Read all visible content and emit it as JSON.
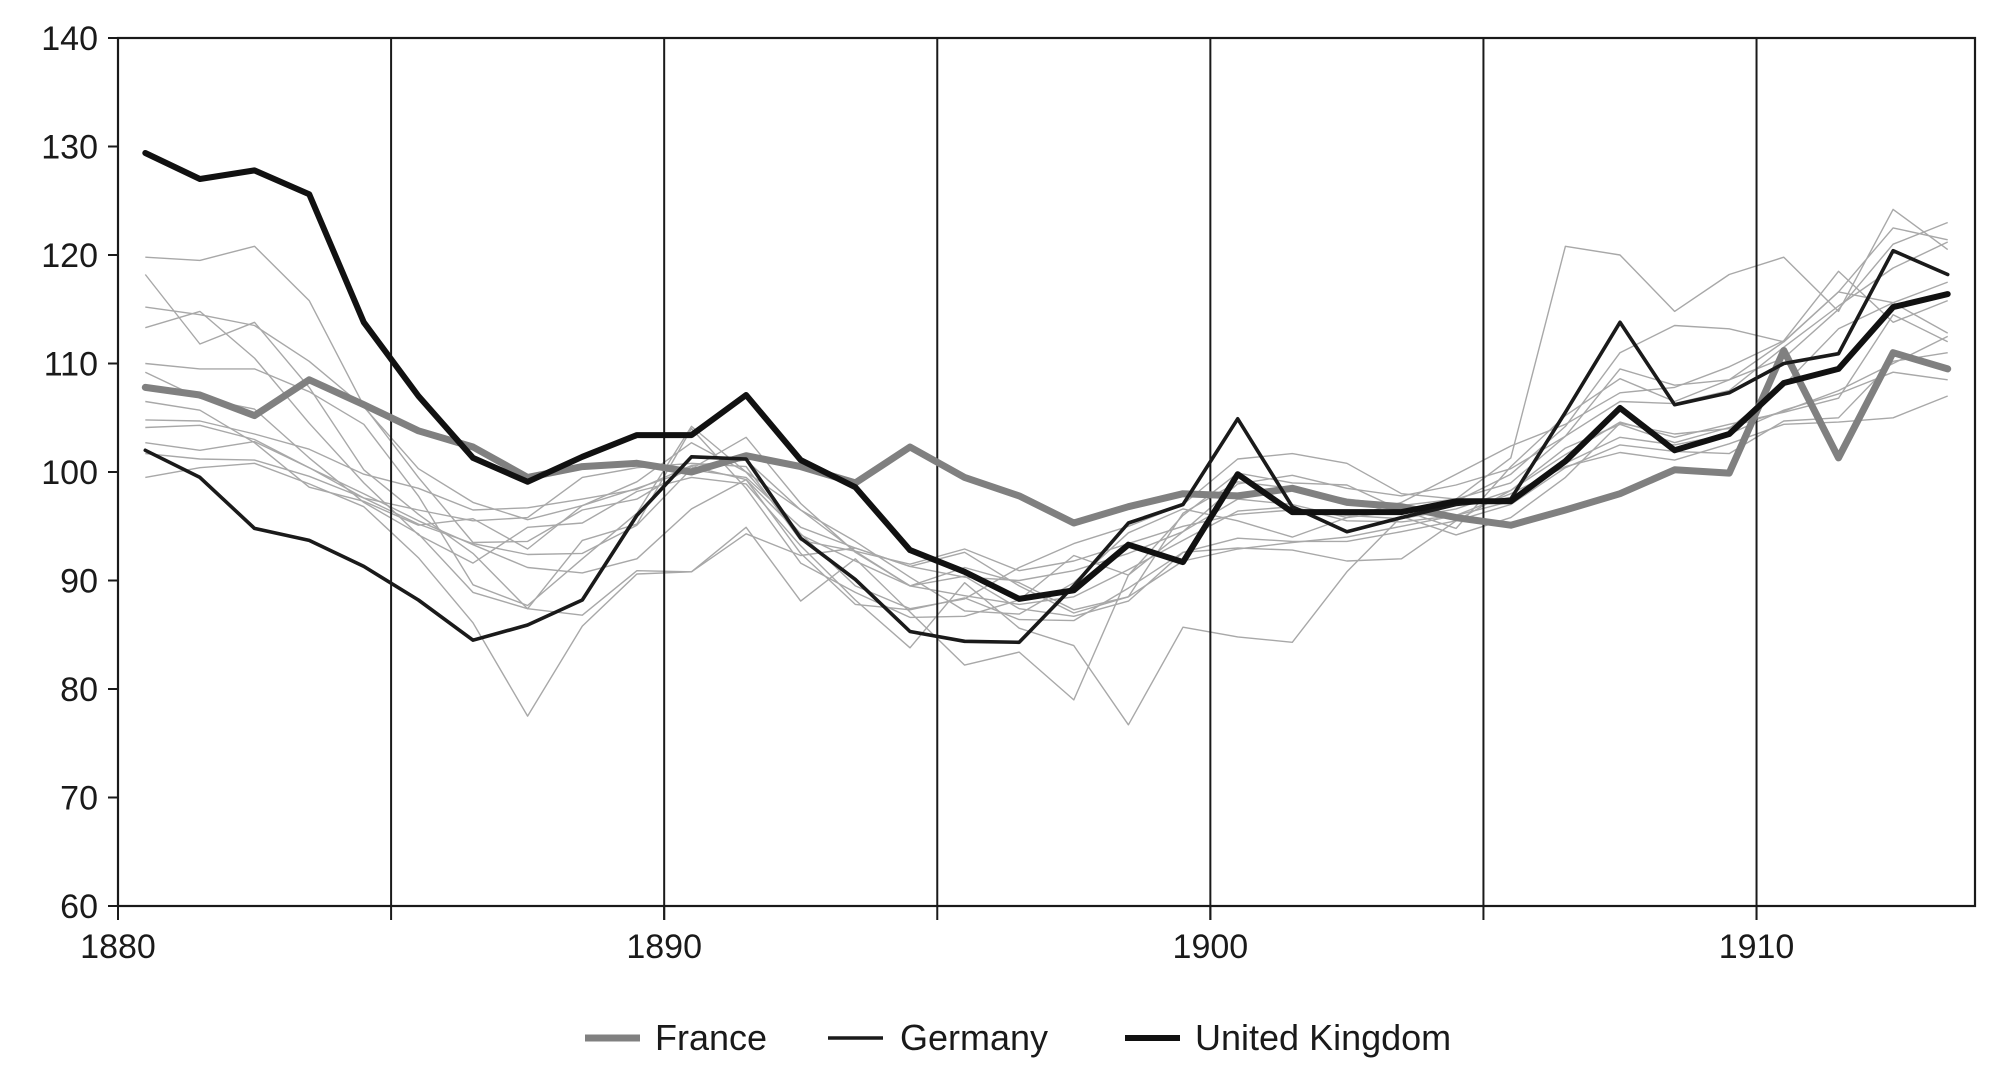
{
  "chart_data": {
    "type": "line",
    "title": "",
    "xlabel": "",
    "ylabel": "",
    "xlim": [
      1880,
      1914
    ],
    "ylim": [
      60,
      140
    ],
    "yticks": [
      60,
      70,
      80,
      90,
      100,
      110,
      120,
      130,
      140
    ],
    "xticks": [
      1880,
      1890,
      1900,
      1910
    ],
    "x_tick_labels": [
      "1880",
      "1890",
      "1900",
      "1910"
    ],
    "vertical_lines": [
      1885,
      1890,
      1895,
      1900,
      1905,
      1910
    ],
    "grid": "vertical lines at 1885, 1890, 1895, 1900, 1905, 1910",
    "legend_position": "bottom",
    "x": [
      1880.5,
      1881.5,
      1882.5,
      1883.5,
      1884.5,
      1885.5,
      1886.5,
      1887.5,
      1888.5,
      1889.5,
      1890.5,
      1891.5,
      1892.5,
      1893.5,
      1894.5,
      1895.5,
      1896.5,
      1897.5,
      1898.5,
      1899.5,
      1900.5,
      1901.5,
      1902.5,
      1903.5,
      1904.5,
      1905.5,
      1906.5,
      1907.5,
      1908.5,
      1909.5,
      1910.5,
      1911.5,
      1912.5,
      1913.5
    ],
    "series": [
      {
        "name": "France",
        "color": "#808080",
        "style": "thick-gray",
        "values": [
          107.8,
          107.1,
          105.2,
          108.5,
          106.2,
          103.8,
          102.3,
          99.5,
          100.5,
          100.8,
          100.0,
          101.5,
          100.5,
          99.0,
          102.3,
          99.5,
          97.8,
          95.3,
          96.8,
          98.0,
          97.8,
          98.5,
          97.2,
          96.8,
          95.8,
          95.1,
          96.5,
          98.0,
          100.2,
          99.9,
          111.2,
          101.3,
          111.0,
          109.5
        ]
      },
      {
        "name": "Germany",
        "color": "#1a1a1a",
        "style": "thin-black",
        "values": [
          102.0,
          99.5,
          94.8,
          93.7,
          91.3,
          88.2,
          84.5,
          85.9,
          88.2,
          96.0,
          101.4,
          101.2,
          93.9,
          90.1,
          85.3,
          84.4,
          84.3,
          89.5,
          95.3,
          97.0,
          104.9,
          96.8,
          94.5,
          95.8,
          97.0,
          97.5,
          105.5,
          113.8,
          106.2,
          107.3,
          110.0,
          110.9,
          120.4,
          118.2
        ]
      },
      {
        "name": "United Kingdom",
        "color": "#111111",
        "style": "thick-black",
        "values": [
          129.4,
          127.0,
          127.8,
          125.6,
          113.8,
          107.0,
          101.3,
          99.1,
          101.4,
          103.4,
          103.4,
          107.1,
          101.1,
          98.6,
          92.8,
          90.8,
          88.3,
          89.1,
          93.3,
          91.7,
          99.8,
          96.3,
          96.3,
          96.3,
          97.3,
          97.3,
          101.0,
          105.9,
          102.0,
          103.5,
          108.2,
          109.5,
          115.2,
          116.4
        ]
      }
    ],
    "background_series_note": "unlabeled thin light-gray lines",
    "background_series": [
      {
        "values": [
          119.8,
          119.5,
          120.8,
          115.8,
          106.1,
          99.5,
          93.5,
          93.6,
          96.5,
          97.5,
          100.5,
          99.3,
          94.2,
          91.8,
          89.5,
          91.2,
          89.8,
          87.3,
          88.5,
          96.2,
          99.1,
          98.5,
          97.5,
          96.9,
          97.5,
          99.0,
          103.3,
          109.5,
          108.0,
          108.5,
          110.5,
          115.0,
          121.0,
          123.0
        ]
      },
      {
        "values": [
          118.2,
          111.8,
          113.8,
          107.8,
          100.2,
          96.1,
          92.5,
          87.4,
          93.7,
          95.2,
          104.0,
          98.5,
          91.6,
          88.9,
          86.6,
          86.7,
          88.2,
          92.3,
          90.5,
          94.5,
          97.5,
          97.0,
          95.8,
          96.4,
          97.3,
          99.8,
          104.2,
          111.0,
          113.5,
          113.2,
          112.0,
          116.6,
          122.5,
          121.4
        ]
      },
      {
        "values": [
          115.2,
          114.5,
          113.5,
          110.2,
          106.0,
          100.3,
          97.2,
          95.6,
          96.9,
          98.5,
          100.2,
          99.5,
          94.9,
          93.0,
          91.3,
          90.3,
          90.0,
          90.9,
          92.5,
          94.5,
          98.9,
          99.7,
          98.5,
          97.8,
          98.8,
          100.3,
          103.3,
          106.5,
          106.3,
          107.5,
          111.5,
          115.3,
          118.8,
          121.2
        ]
      },
      {
        "values": [
          113.3,
          114.8,
          110.5,
          104.5,
          99.0,
          94.2,
          91.6,
          94.9,
          95.3,
          98.2,
          99.5,
          98.9,
          93.2,
          88.2,
          83.8,
          89.8,
          85.6,
          84.0,
          76.7,
          85.7,
          84.8,
          84.3,
          90.8,
          95.9,
          94.2,
          95.8,
          99.5,
          104.5,
          103.5,
          104.0,
          108.0,
          113.2,
          115.6,
          117.5
        ]
      },
      {
        "values": [
          110.0,
          109.5,
          109.5,
          107.4,
          104.4,
          97.8,
          89.6,
          87.7,
          92.0,
          96.2,
          104.2,
          100.0,
          94.3,
          89.5,
          87.4,
          88.3,
          91.2,
          93.4,
          95.0,
          97.0,
          101.2,
          101.7,
          100.8,
          98.0,
          97.5,
          101.3,
          120.8,
          120.0,
          114.8,
          118.2,
          119.8,
          114.8,
          124.2,
          120.5
        ]
      },
      {
        "values": [
          109.2,
          106.8,
          105.8,
          101.3,
          97.2,
          94.3,
          88.9,
          87.4,
          86.8,
          90.9,
          90.8,
          94.9,
          88.1,
          92.0,
          87.1,
          82.2,
          83.4,
          79.0,
          90.5,
          96.0,
          99.9,
          99.0,
          98.8,
          96.5,
          94.8,
          100.5,
          105.2,
          108.6,
          106.5,
          108.5,
          112.0,
          116.6,
          115.6,
          112.8
        ]
      },
      {
        "values": [
          106.5,
          105.7,
          102.7,
          98.6,
          97.3,
          95.1,
          95.7,
          92.9,
          96.9,
          99.1,
          102.7,
          100.0,
          96.5,
          93.6,
          90.3,
          87.2,
          86.9,
          89.8,
          94.4,
          96.6,
          95.5,
          94.0,
          95.8,
          97.2,
          99.8,
          102.4,
          104.4,
          107.3,
          107.8,
          109.7,
          112.1,
          118.5,
          113.8,
          115.8
        ]
      },
      {
        "values": [
          104.8,
          104.7,
          103.5,
          102.1,
          99.8,
          98.5,
          96.5,
          96.7,
          97.5,
          98.4,
          100.6,
          101.1,
          96.5,
          92.7,
          89.5,
          90.4,
          87.4,
          86.7,
          88.1,
          92.6,
          93.0,
          92.8,
          91.8,
          92.0,
          95.5,
          98.3,
          101.6,
          104.6,
          103.2,
          104.4,
          105.5,
          106.8,
          114.5,
          112.0
        ]
      },
      {
        "values": [
          104.1,
          104.3,
          103.0,
          100.4,
          97.6,
          96.5,
          95.5,
          95.8,
          99.5,
          100.4,
          100.8,
          100.5,
          93.7,
          92.7,
          91.5,
          92.9,
          90.9,
          91.8,
          93.4,
          95.0,
          96.1,
          96.5,
          96.0,
          95.7,
          96.6,
          98.3,
          102.2,
          104.4,
          102.7,
          104.1,
          105.6,
          107.5,
          110.0,
          112.5
        ]
      },
      {
        "values": [
          102.7,
          102.0,
          102.8,
          100.4,
          98.0,
          95.5,
          93.3,
          91.2,
          90.7,
          92.0,
          96.6,
          99.3,
          92.5,
          87.8,
          87.3,
          88.4,
          86.4,
          86.3,
          89.3,
          92.6,
          93.9,
          93.6,
          93.6,
          94.5,
          95.5,
          97.0,
          100.4,
          102.5,
          101.9,
          101.7,
          104.7,
          105.0,
          110.2,
          111.0
        ]
      },
      {
        "values": [
          101.7,
          101.2,
          101.1,
          99.6,
          97.6,
          95.2,
          93.4,
          92.4,
          92.5,
          95.1,
          100.3,
          103.2,
          97.1,
          92.6,
          89.5,
          88.6,
          87.8,
          88.5,
          91.0,
          93.7,
          96.4,
          96.8,
          95.5,
          95.4,
          96.0,
          97.3,
          100.8,
          103.2,
          102.5,
          103.5,
          105.7,
          107.2,
          109.2,
          108.5
        ]
      },
      {
        "values": [
          99.5,
          100.4,
          100.8,
          98.9,
          96.8,
          92.1,
          86.1,
          77.5,
          85.8,
          90.6,
          90.8,
          94.3,
          92.3,
          93.0,
          91.3,
          92.6,
          89.5,
          87.0,
          88.5,
          91.8,
          92.9,
          93.5,
          94.0,
          95.0,
          96.0,
          98.0,
          100.5,
          101.8,
          101.1,
          102.6,
          104.4,
          104.6,
          105.0,
          107.0
        ]
      }
    ]
  }
}
